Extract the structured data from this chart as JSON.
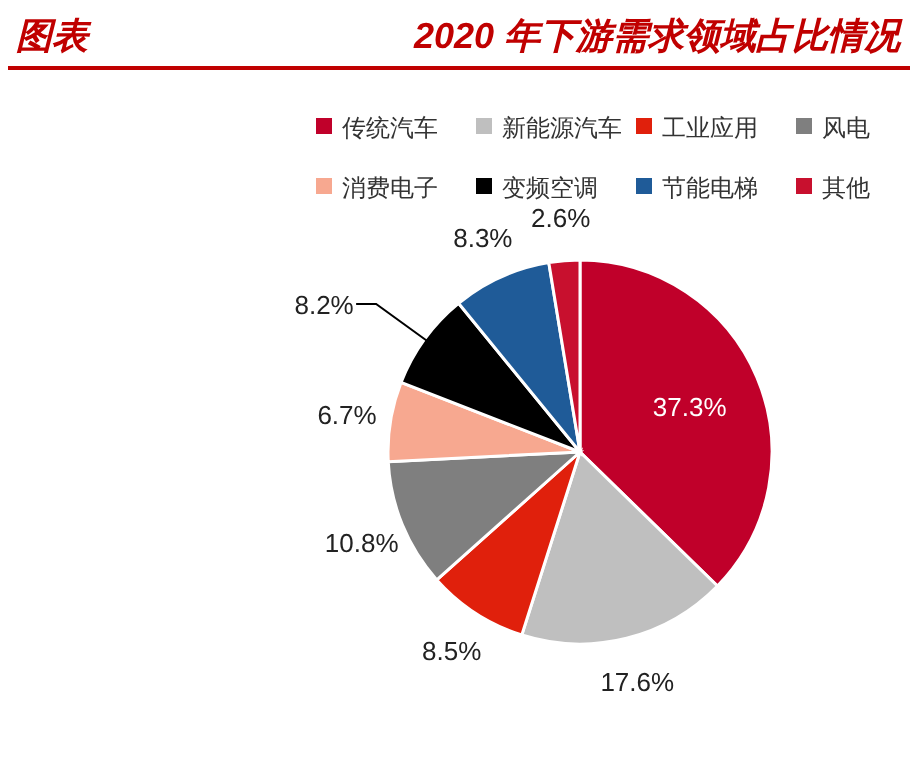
{
  "chart_data": {
    "type": "pie",
    "title": "2020 年下游需求领域占比情况",
    "annotations": [
      "图表"
    ],
    "categories": [
      "传统汽车",
      "新能源汽车",
      "工业应用",
      "风电",
      "消费电子",
      "变频空调",
      "节能电梯",
      "其他"
    ],
    "values": [
      37.3,
      17.6,
      8.5,
      10.8,
      6.7,
      8.2,
      8.3,
      2.6
    ],
    "colors": [
      "#c0002a",
      "#bfbfbf",
      "#e0200c",
      "#7f7f7f",
      "#f7a890",
      "#000000",
      "#1f5b98",
      "#c8102e"
    ],
    "value_labels": [
      "37.3%",
      "17.6%",
      "8.5%",
      "10.8%",
      "6.7%",
      "8.2%",
      "8.3%",
      "2.6%"
    ],
    "legend": "top"
  }
}
